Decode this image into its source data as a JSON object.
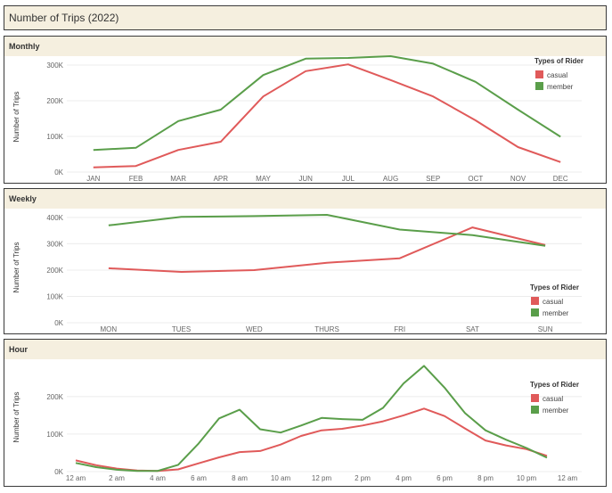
{
  "title": "Number of Trips (2022)",
  "legend_title": "Types of Rider",
  "colors": {
    "casual": "#e05a5a",
    "member": "#5a9e4a"
  },
  "chart_data": [
    {
      "panel": "Monthly",
      "type": "line",
      "ylabel": "Number of Trips",
      "categories": [
        "JAN",
        "FEB",
        "MAR",
        "APR",
        "MAY",
        "JUN",
        "JUL",
        "AUG",
        "SEP",
        "OCT",
        "NOV",
        "DEC"
      ],
      "ylim": [
        0,
        310000
      ],
      "yticks": [
        0,
        100000,
        200000,
        300000
      ],
      "ytick_labels": [
        "0K",
        "100K",
        "200K",
        "300K"
      ],
      "legend_position": "top-right",
      "series": [
        {
          "name": "casual",
          "values": [
            13000,
            17000,
            62000,
            85000,
            212000,
            283000,
            302000,
            258000,
            212000,
            145000,
            70000,
            28000
          ]
        },
        {
          "name": "member",
          "values": [
            62000,
            68000,
            143000,
            175000,
            272000,
            318000,
            320000,
            325000,
            304000,
            253000,
            175000,
            99000
          ]
        }
      ]
    },
    {
      "panel": "Weekly",
      "type": "line",
      "ylabel": "Number of Trips",
      "categories": [
        "MON",
        "TUES",
        "WED",
        "THURS",
        "FRI",
        "SAT",
        "SUN"
      ],
      "ylim": [
        0,
        420000
      ],
      "yticks": [
        0,
        100000,
        200000,
        300000,
        400000
      ],
      "ytick_labels": [
        "0K",
        "100K",
        "200K",
        "300K",
        "400K"
      ],
      "legend_position": "bottom-right",
      "series": [
        {
          "name": "casual",
          "values": [
            207000,
            193000,
            200000,
            228000,
            245000,
            362000,
            295000
          ]
        },
        {
          "name": "member",
          "values": [
            370000,
            402000,
            405000,
            410000,
            354000,
            333000,
            292000
          ]
        }
      ]
    },
    {
      "panel": "Hour",
      "type": "line",
      "ylabel": "Number of Trips",
      "x": [
        0,
        1,
        2,
        3,
        4,
        5,
        6,
        7,
        8,
        9,
        10,
        11,
        12,
        13,
        14,
        15,
        16,
        17,
        18,
        19,
        20,
        21,
        22,
        23
      ],
      "xticks": [
        0,
        2,
        4,
        6,
        8,
        10,
        12,
        14,
        16,
        18,
        20,
        22,
        24
      ],
      "xtick_labels": [
        "12 am",
        "2 am",
        "4 am",
        "6 am",
        "8 am",
        "10 am",
        "12 pm",
        "2 pm",
        "4 pm",
        "6 pm",
        "8 pm",
        "10 pm",
        "12 am"
      ],
      "ylim": [
        0,
        290000
      ],
      "yticks": [
        0,
        100000,
        200000
      ],
      "ytick_labels": [
        "0K",
        "100K",
        "200K"
      ],
      "legend_position": "top-right",
      "series": [
        {
          "name": "casual",
          "values": [
            30000,
            17000,
            8000,
            3000,
            2000,
            6000,
            22000,
            38000,
            52000,
            55000,
            72000,
            95000,
            110000,
            114000,
            123000,
            134000,
            150000,
            168000,
            148000,
            115000,
            83000,
            70000,
            60000,
            42000
          ]
        },
        {
          "name": "member",
          "values": [
            23000,
            12000,
            5000,
            2000,
            2000,
            18000,
            75000,
            142000,
            165000,
            113000,
            104000,
            123000,
            143000,
            140000,
            138000,
            170000,
            235000,
            282000,
            224000,
            156000,
            110000,
            85000,
            63000,
            37000
          ]
        }
      ]
    }
  ]
}
